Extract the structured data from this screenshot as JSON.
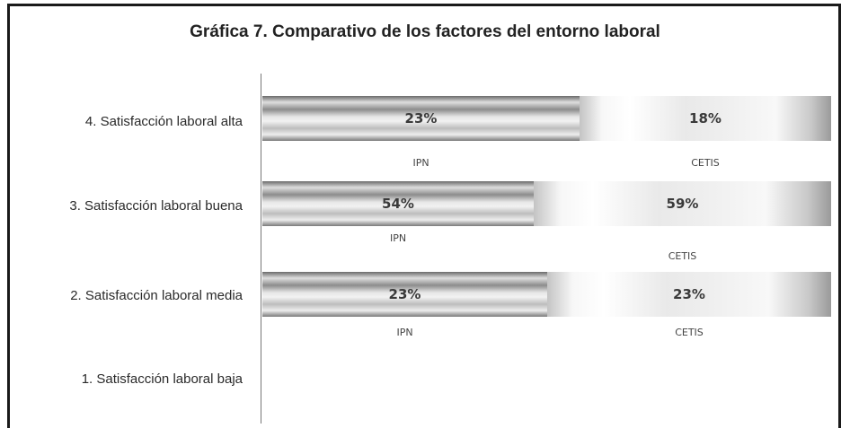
{
  "chart_data": {
    "type": "bar",
    "orientation": "horizontal",
    "stacked": true,
    "title": "Gráfica 7. Comparativo de los factores del entorno laboral",
    "categories": [
      "4. Satisfacción laboral alta",
      "3. Satisfacción laboral buena",
      "2. Satisfacción laboral media",
      "1. Satisfacción laboral baja"
    ],
    "series": [
      {
        "name": "IPN",
        "values": [
          23,
          54,
          23,
          null
        ],
        "labels": [
          "23%",
          "54%",
          "23%",
          ""
        ]
      },
      {
        "name": "CETIS",
        "values": [
          18,
          59,
          23,
          null
        ],
        "labels": [
          "18%",
          "59%",
          "23%",
          ""
        ]
      }
    ],
    "colors": {
      "text": "#222222",
      "axis": "#777777",
      "bar_dark": "#6b6b6b",
      "bar_light": "#f2f2f2"
    }
  }
}
